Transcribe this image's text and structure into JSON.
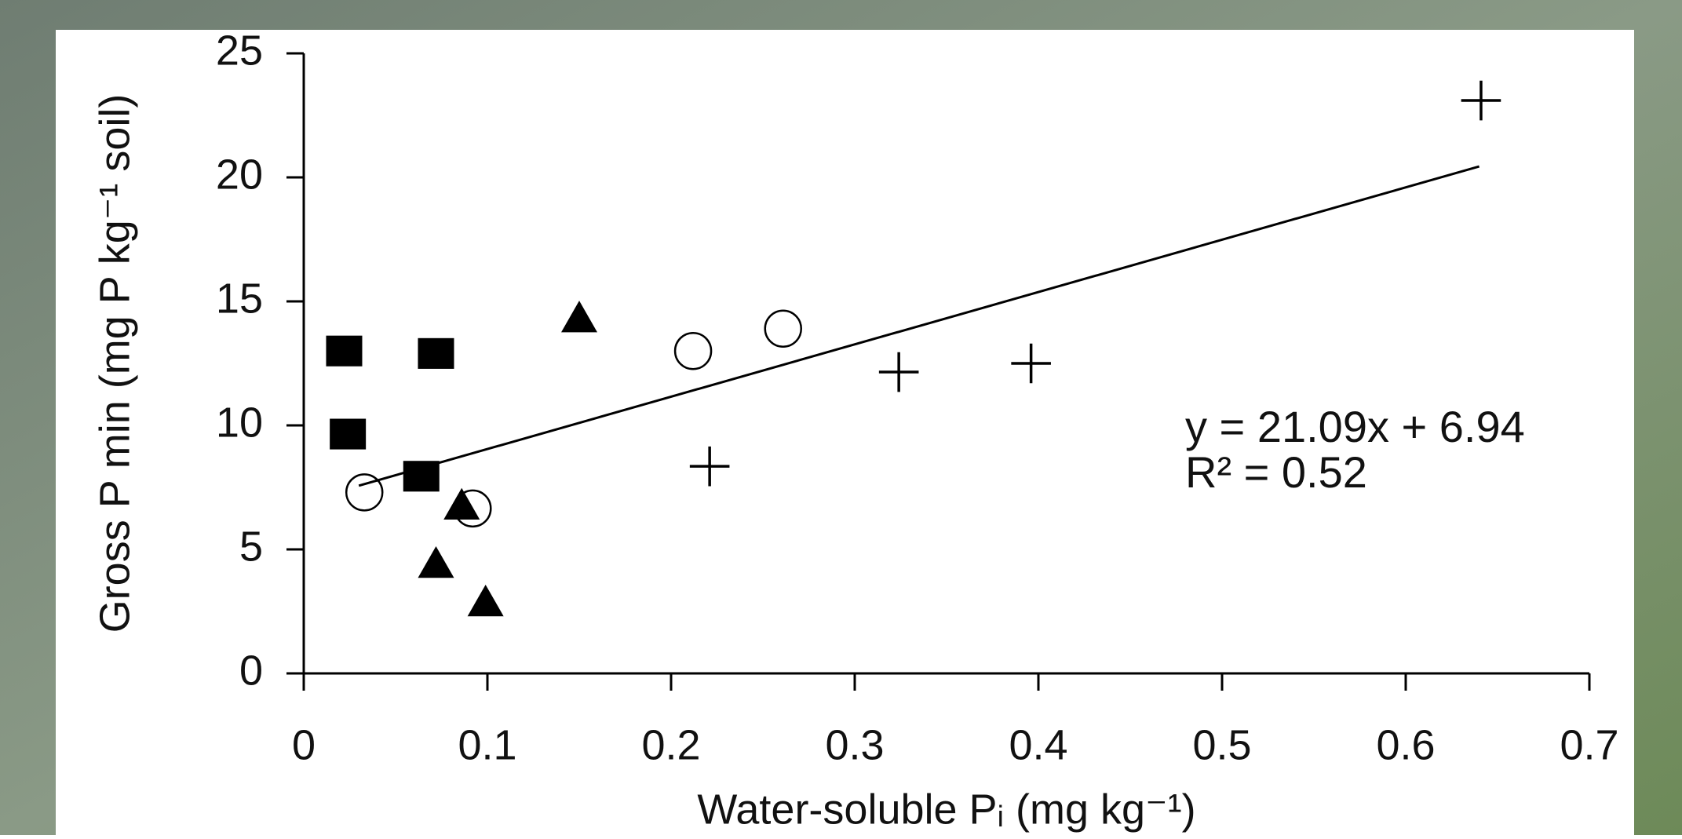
{
  "chart_data": {
    "type": "scatter",
    "x_label": "Water-soluble Pᵢ (mg kg⁻¹)",
    "y_label": "Gross P min (mg P kg⁻¹ soil)",
    "xlim": [
      0,
      0.7
    ],
    "xticks": [
      0,
      0.1,
      0.2,
      0.3,
      0.4,
      0.5,
      0.6,
      0.7
    ],
    "ylim": [
      0,
      25
    ],
    "yticks": [
      0,
      5,
      10,
      15,
      20,
      25
    ],
    "series": [
      {
        "marker": "square",
        "color": "#000000",
        "x": [
          0.022,
          0.072,
          0.024,
          0.064
        ],
        "values": [
          13.0,
          12.9,
          9.65,
          7.95
        ]
      },
      {
        "marker": "triangle",
        "color": "#000000",
        "x": [
          0.15,
          0.086,
          0.072,
          0.099
        ],
        "values": [
          14.3,
          6.75,
          4.4,
          2.85
        ]
      },
      {
        "marker": "circle",
        "color": "#000000",
        "x": [
          0.033,
          0.092,
          0.212,
          0.261
        ],
        "values": [
          7.3,
          6.65,
          13.0,
          13.9
        ]
      },
      {
        "marker": "plus",
        "color": "#000000",
        "x": [
          0.641,
          0.324,
          0.396,
          0.221
        ],
        "values": [
          23.1,
          12.15,
          12.5,
          8.35
        ]
      }
    ],
    "trendline": {
      "color": "#000000",
      "x": [
        0.03,
        0.64
      ],
      "values": [
        7.57,
        20.44
      ]
    },
    "annotations": [
      "y = 21.09x + 6.94",
      "R² = 0.52"
    ]
  }
}
